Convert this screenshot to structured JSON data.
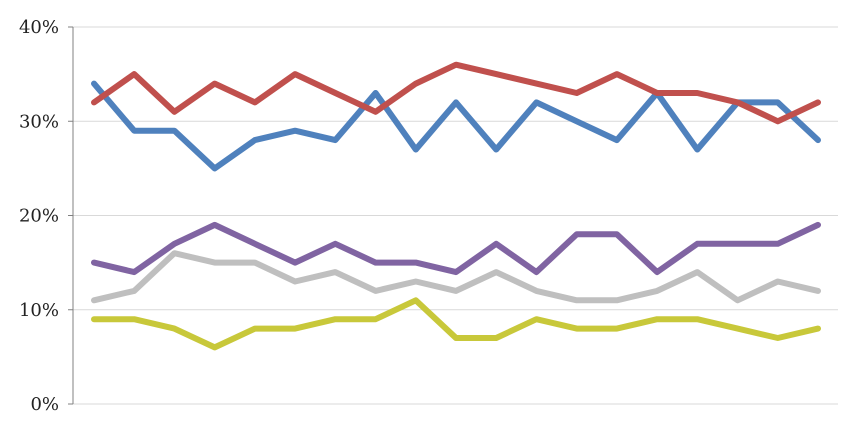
{
  "chart_data": {
    "type": "line",
    "title": "",
    "xlabel": "",
    "ylabel": "",
    "ylim": [
      0,
      40
    ],
    "y_tick_labels": [
      "0%",
      "10%",
      "20%",
      "30%",
      "40%"
    ],
    "y_tick_values": [
      0,
      10,
      20,
      30,
      40
    ],
    "grid": true,
    "legend": "none",
    "x": [
      1,
      2,
      3,
      4,
      5,
      6,
      7,
      8,
      9,
      10,
      11,
      12,
      13,
      14,
      15,
      16,
      17,
      18,
      19
    ],
    "series": [
      {
        "color": "#4f81bd",
        "values": [
          34,
          29,
          29,
          25,
          28,
          29,
          28,
          33,
          27,
          32,
          27,
          32,
          30,
          28,
          33,
          27,
          32,
          32,
          28
        ]
      },
      {
        "color": "#c0504d",
        "values": [
          32,
          35,
          31,
          34,
          32,
          35,
          33,
          31,
          34,
          36,
          35,
          34,
          33,
          35,
          33,
          33,
          32,
          30,
          32
        ]
      },
      {
        "color": "#8064a2",
        "values": [
          15,
          14,
          17,
          19,
          17,
          15,
          17,
          15,
          15,
          14,
          17,
          14,
          18,
          18,
          14,
          17,
          17,
          17,
          19
        ]
      },
      {
        "color": "#bfbfbf",
        "values": [
          11,
          12,
          16,
          15,
          15,
          13,
          14,
          12,
          13,
          12,
          14,
          12,
          11,
          11,
          12,
          14,
          11,
          13,
          12
        ]
      },
      {
        "color": "#c8c83a",
        "values": [
          9,
          9,
          8,
          6,
          8,
          8,
          9,
          9,
          11,
          7,
          7,
          9,
          8,
          8,
          9,
          9,
          8,
          7,
          8
        ]
      }
    ]
  }
}
